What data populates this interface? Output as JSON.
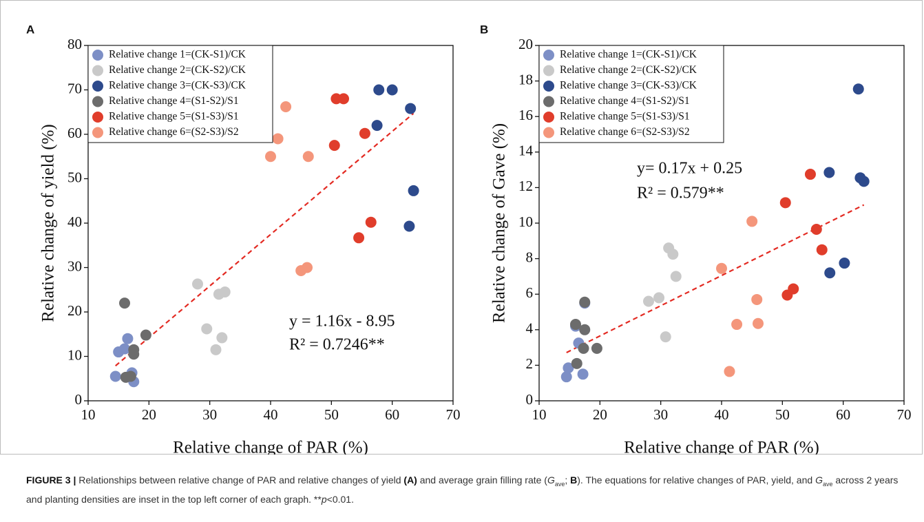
{
  "chart_data": [
    {
      "type": "scatter",
      "panel": "A",
      "x_label": "Relative change of PAR (%)",
      "y_label": "Relative change of yield (%)",
      "xlim": [
        10,
        70
      ],
      "xticks": [
        10,
        20,
        30,
        40,
        50,
        60,
        70
      ],
      "ylim": [
        0,
        80
      ],
      "yticks": [
        0,
        10,
        20,
        30,
        40,
        50,
        60,
        70,
        80
      ],
      "legend": "upper left",
      "series": [
        {
          "name": "Relative change 1=(CK-S1)/CK",
          "color": "#7d8fc6",
          "x": [
            14.5,
            15,
            16,
            16.5,
            17.2,
            17.5
          ],
          "values": [
            5.5,
            11,
            11.7,
            14,
            6.3,
            4.3
          ]
        },
        {
          "name": "Relative change 2=(CK-S2)/CK",
          "color": "#c9c9c9",
          "x": [
            28,
            29.5,
            31,
            31.5,
            32,
            32.5
          ],
          "values": [
            26.3,
            16.2,
            11.5,
            24,
            14.2,
            24.5
          ]
        },
        {
          "name": "Relative change 3=(CK-S3)/CK",
          "color": "#2d4a8c",
          "x": [
            57.5,
            57.8,
            60,
            62.8,
            63,
            63.5
          ],
          "values": [
            62,
            70,
            70,
            39.3,
            65.8,
            47.3
          ]
        },
        {
          "name": "Relative change 4=(S1-S2)/S1",
          "color": "#6c6c6c",
          "x": [
            16,
            16.2,
            17,
            17.5,
            17.5,
            19.5
          ],
          "values": [
            22,
            5.3,
            5.5,
            11.5,
            10.5,
            14.8
          ]
        },
        {
          "name": "Relative change 5=(S1-S3)/S1",
          "color": "#e03d2b",
          "x": [
            50.5,
            50.8,
            52,
            54.5,
            55.5,
            56.5
          ],
          "values": [
            57.5,
            68,
            68,
            36.7,
            60.2,
            40.2
          ]
        },
        {
          "name": "Relative change 6=(S2-S3)/S2",
          "color": "#f4967b",
          "x": [
            40,
            41.2,
            42.5,
            45,
            46,
            46.2
          ],
          "values": [
            55,
            59,
            66.2,
            29.3,
            30,
            55
          ]
        }
      ],
      "trendline": {
        "slope": 1.16,
        "intercept": -8.95,
        "color": "#e32a22"
      },
      "annotations": [
        "y = 1.16x - 8.95",
        "R² = 0.7246**"
      ]
    },
    {
      "type": "scatter",
      "panel": "B",
      "x_label": "Relative change of PAR (%)",
      "y_label": "Relative change of Gave (%)",
      "xlim": [
        10,
        70
      ],
      "xticks": [
        10,
        20,
        30,
        40,
        50,
        60,
        70
      ],
      "ylim": [
        0,
        20
      ],
      "yticks": [
        0,
        2,
        4,
        6,
        8,
        10,
        12,
        14,
        16,
        18,
        20
      ],
      "legend": "upper left",
      "series": [
        {
          "name": "Relative change 1=(CK-S1)/CK",
          "color": "#7d8fc6",
          "x": [
            14.5,
            14.8,
            16,
            16.5,
            17.2,
            17.5
          ],
          "values": [
            1.35,
            1.85,
            4.2,
            3.25,
            1.5,
            5.5
          ]
        },
        {
          "name": "Relative change 2=(CK-S2)/CK",
          "color": "#c9c9c9",
          "x": [
            28,
            29.7,
            30.8,
            31.3,
            32,
            32.5
          ],
          "values": [
            5.6,
            5.8,
            3.6,
            8.6,
            8.25,
            7
          ]
        },
        {
          "name": "Relative change 3=(CK-S3)/CK",
          "color": "#2d4a8c",
          "x": [
            57.7,
            57.8,
            60.2,
            62.5,
            62.8,
            63.4
          ],
          "values": [
            12.85,
            7.2,
            7.75,
            17.55,
            12.55,
            12.35
          ]
        },
        {
          "name": "Relative change 4=(S1-S2)/S1",
          "color": "#6c6c6c",
          "x": [
            16,
            16.2,
            17.3,
            17.5,
            17.5,
            19.5
          ],
          "values": [
            4.3,
            2.1,
            2.95,
            4,
            5.55,
            2.95
          ]
        },
        {
          "name": "Relative change 5=(S1-S3)/S1",
          "color": "#e03d2b",
          "x": [
            50.5,
            50.8,
            51.8,
            54.6,
            55.6,
            56.5
          ],
          "values": [
            11.15,
            5.95,
            6.3,
            12.75,
            9.65,
            8.5
          ]
        },
        {
          "name": "Relative change 6=(S2-S3)/S2",
          "color": "#f4967b",
          "x": [
            40,
            41.3,
            42.5,
            45,
            45.8,
            46
          ],
          "values": [
            7.45,
            1.65,
            4.3,
            10.1,
            5.7,
            4.35
          ]
        }
      ],
      "trendline": {
        "slope": 0.17,
        "intercept": 0.25,
        "color": "#e32a22"
      },
      "annotations": [
        "y= 0.17x + 0.25",
        "R² = 0.579**"
      ]
    }
  ],
  "caption": [
    {
      "text": "FIGURE 3 | ",
      "style": "bold"
    },
    {
      "text": "Relationships between relative change of PAR and relative changes of yield ",
      "style": "normal"
    },
    {
      "text": "(A)",
      "style": "bold"
    },
    {
      "text": " and average grain filling rate (",
      "style": "normal"
    },
    {
      "text": "G",
      "style": "italic"
    },
    {
      "text": "ave",
      "style": "sub"
    },
    {
      "text": "; ",
      "style": "normal"
    },
    {
      "text": "B",
      "style": "bold"
    },
    {
      "text": "). The equations for relative changes of PAR, yield, and ",
      "style": "normal"
    },
    {
      "text": "G",
      "style": "italic"
    },
    {
      "text": "ave",
      "style": "sub"
    },
    {
      "text": " across 2 years and planting densities are inset in the top left corner of each graph. **",
      "style": "normal"
    },
    {
      "text": "p",
      "style": "italic"
    },
    {
      "text": "<0.01.",
      "style": "normal"
    }
  ]
}
